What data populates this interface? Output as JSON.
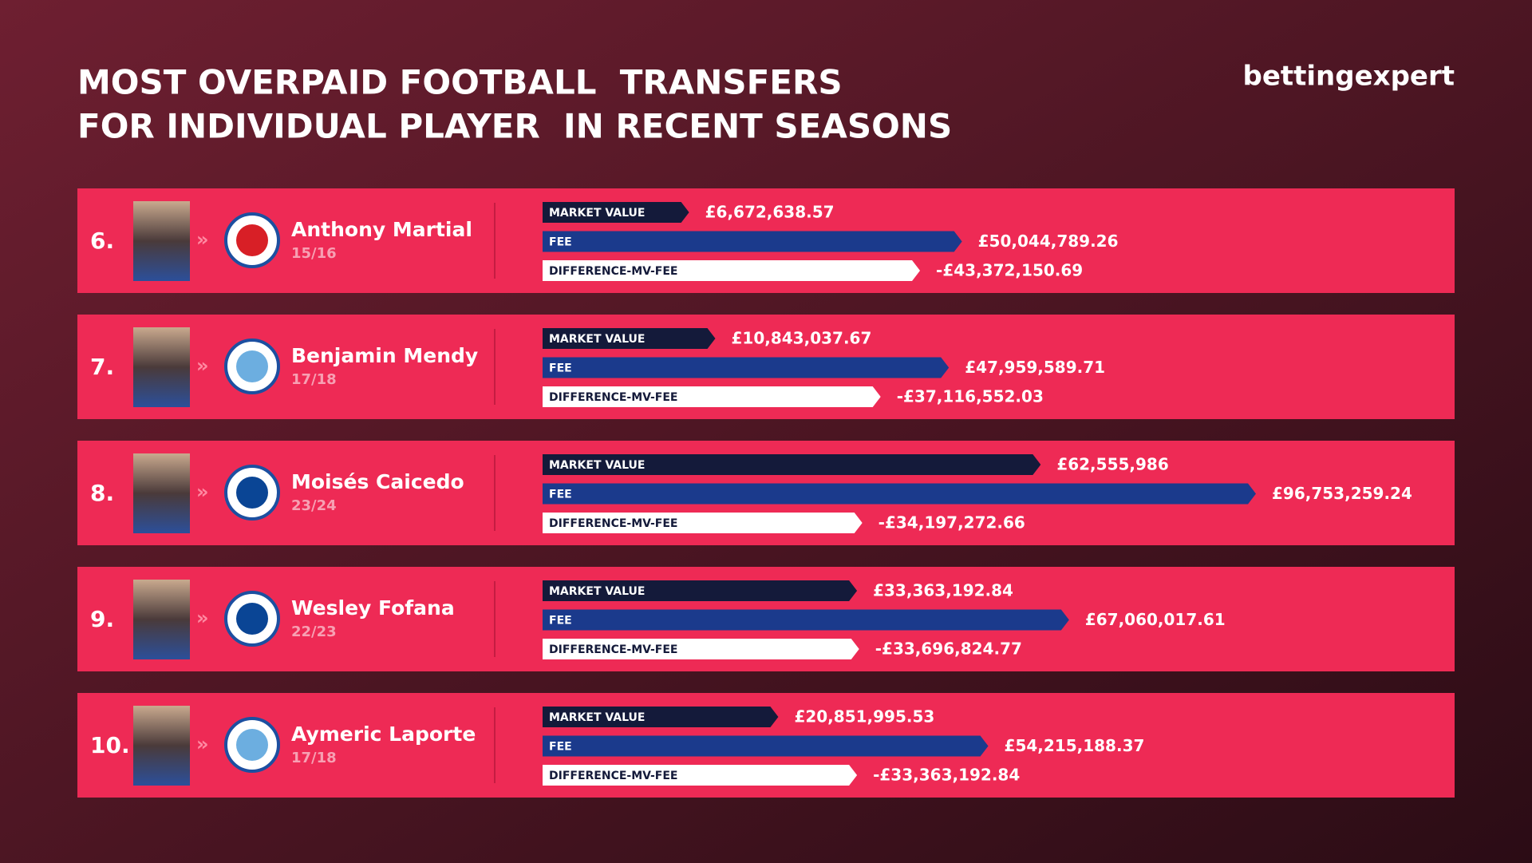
{
  "header": {
    "title_lines": [
      "MOST OVERPAID FOOTBALL  TRANSFERS",
      "FOR INDIVIDUAL PLAYER  IN RECENT SEASONS"
    ],
    "brand": "bettingexpert"
  },
  "rows": [
    {
      "rank": "6.",
      "player": "Anthony Martial",
      "season": "15/16",
      "bars": [
        {
          "label": "MARKET VALUE",
          "value": 6672638.57,
          "value_label": "£6,672,638.57"
        },
        {
          "label": "FEE",
          "value": 50044789.26,
          "value_label": "£50,044,789.26"
        },
        {
          "label": "DIFFERENCE-MV-FEE",
          "value": -43372150.69,
          "value_label": "-£43,372,150.69"
        }
      ]
    },
    {
      "rank": "7.",
      "player": "Benjamin Mendy",
      "season": "17/18",
      "bars": [
        {
          "label": "MARKET VALUE",
          "value": 10843037.67,
          "value_label": "£10,843,037.67"
        },
        {
          "label": "FEE",
          "value": 47959589.71,
          "value_label": "£47,959,589.71"
        },
        {
          "label": "DIFFERENCE-MV-FEE",
          "value": -37116552.03,
          "value_label": "-£37,116,552.03"
        }
      ]
    },
    {
      "rank": "8.",
      "player": "Moisés Caicedo",
      "season": "23/24",
      "bars": [
        {
          "label": "MARKET VALUE",
          "value": 62555986,
          "value_label": "£62,555,986"
        },
        {
          "label": "FEE",
          "value": 96753259.24,
          "value_label": "£96,753,259.24"
        },
        {
          "label": "DIFFERENCE-MV-FEE",
          "value": -34197272.66,
          "value_label": "-£34,197,272.66"
        }
      ]
    },
    {
      "rank": "9.",
      "player": "Wesley Fofana",
      "season": "22/23",
      "bars": [
        {
          "label": "MARKET VALUE",
          "value": 33363192.84,
          "value_label": "£33,363,192.84"
        },
        {
          "label": "FEE",
          "value": 67060017.61,
          "value_label": "£67,060,017.61"
        },
        {
          "label": "DIFFERENCE-MV-FEE",
          "value": -33696824.77,
          "value_label": "-£33,696,824.77"
        }
      ]
    },
    {
      "rank": "10.",
      "player": "Aymeric Laporte",
      "season": "17/18",
      "bars": [
        {
          "label": "MARKET VALUE",
          "value": 20851995.53,
          "value_label": "£20,851,995.53"
        },
        {
          "label": "FEE",
          "value": 54215188.37,
          "value_label": "£54,215,188.37"
        },
        {
          "label": "DIFFERENCE-MV-FEE",
          "value": -33363192.84,
          "value_label": "-£33,363,192.84"
        }
      ]
    }
  ]
}
